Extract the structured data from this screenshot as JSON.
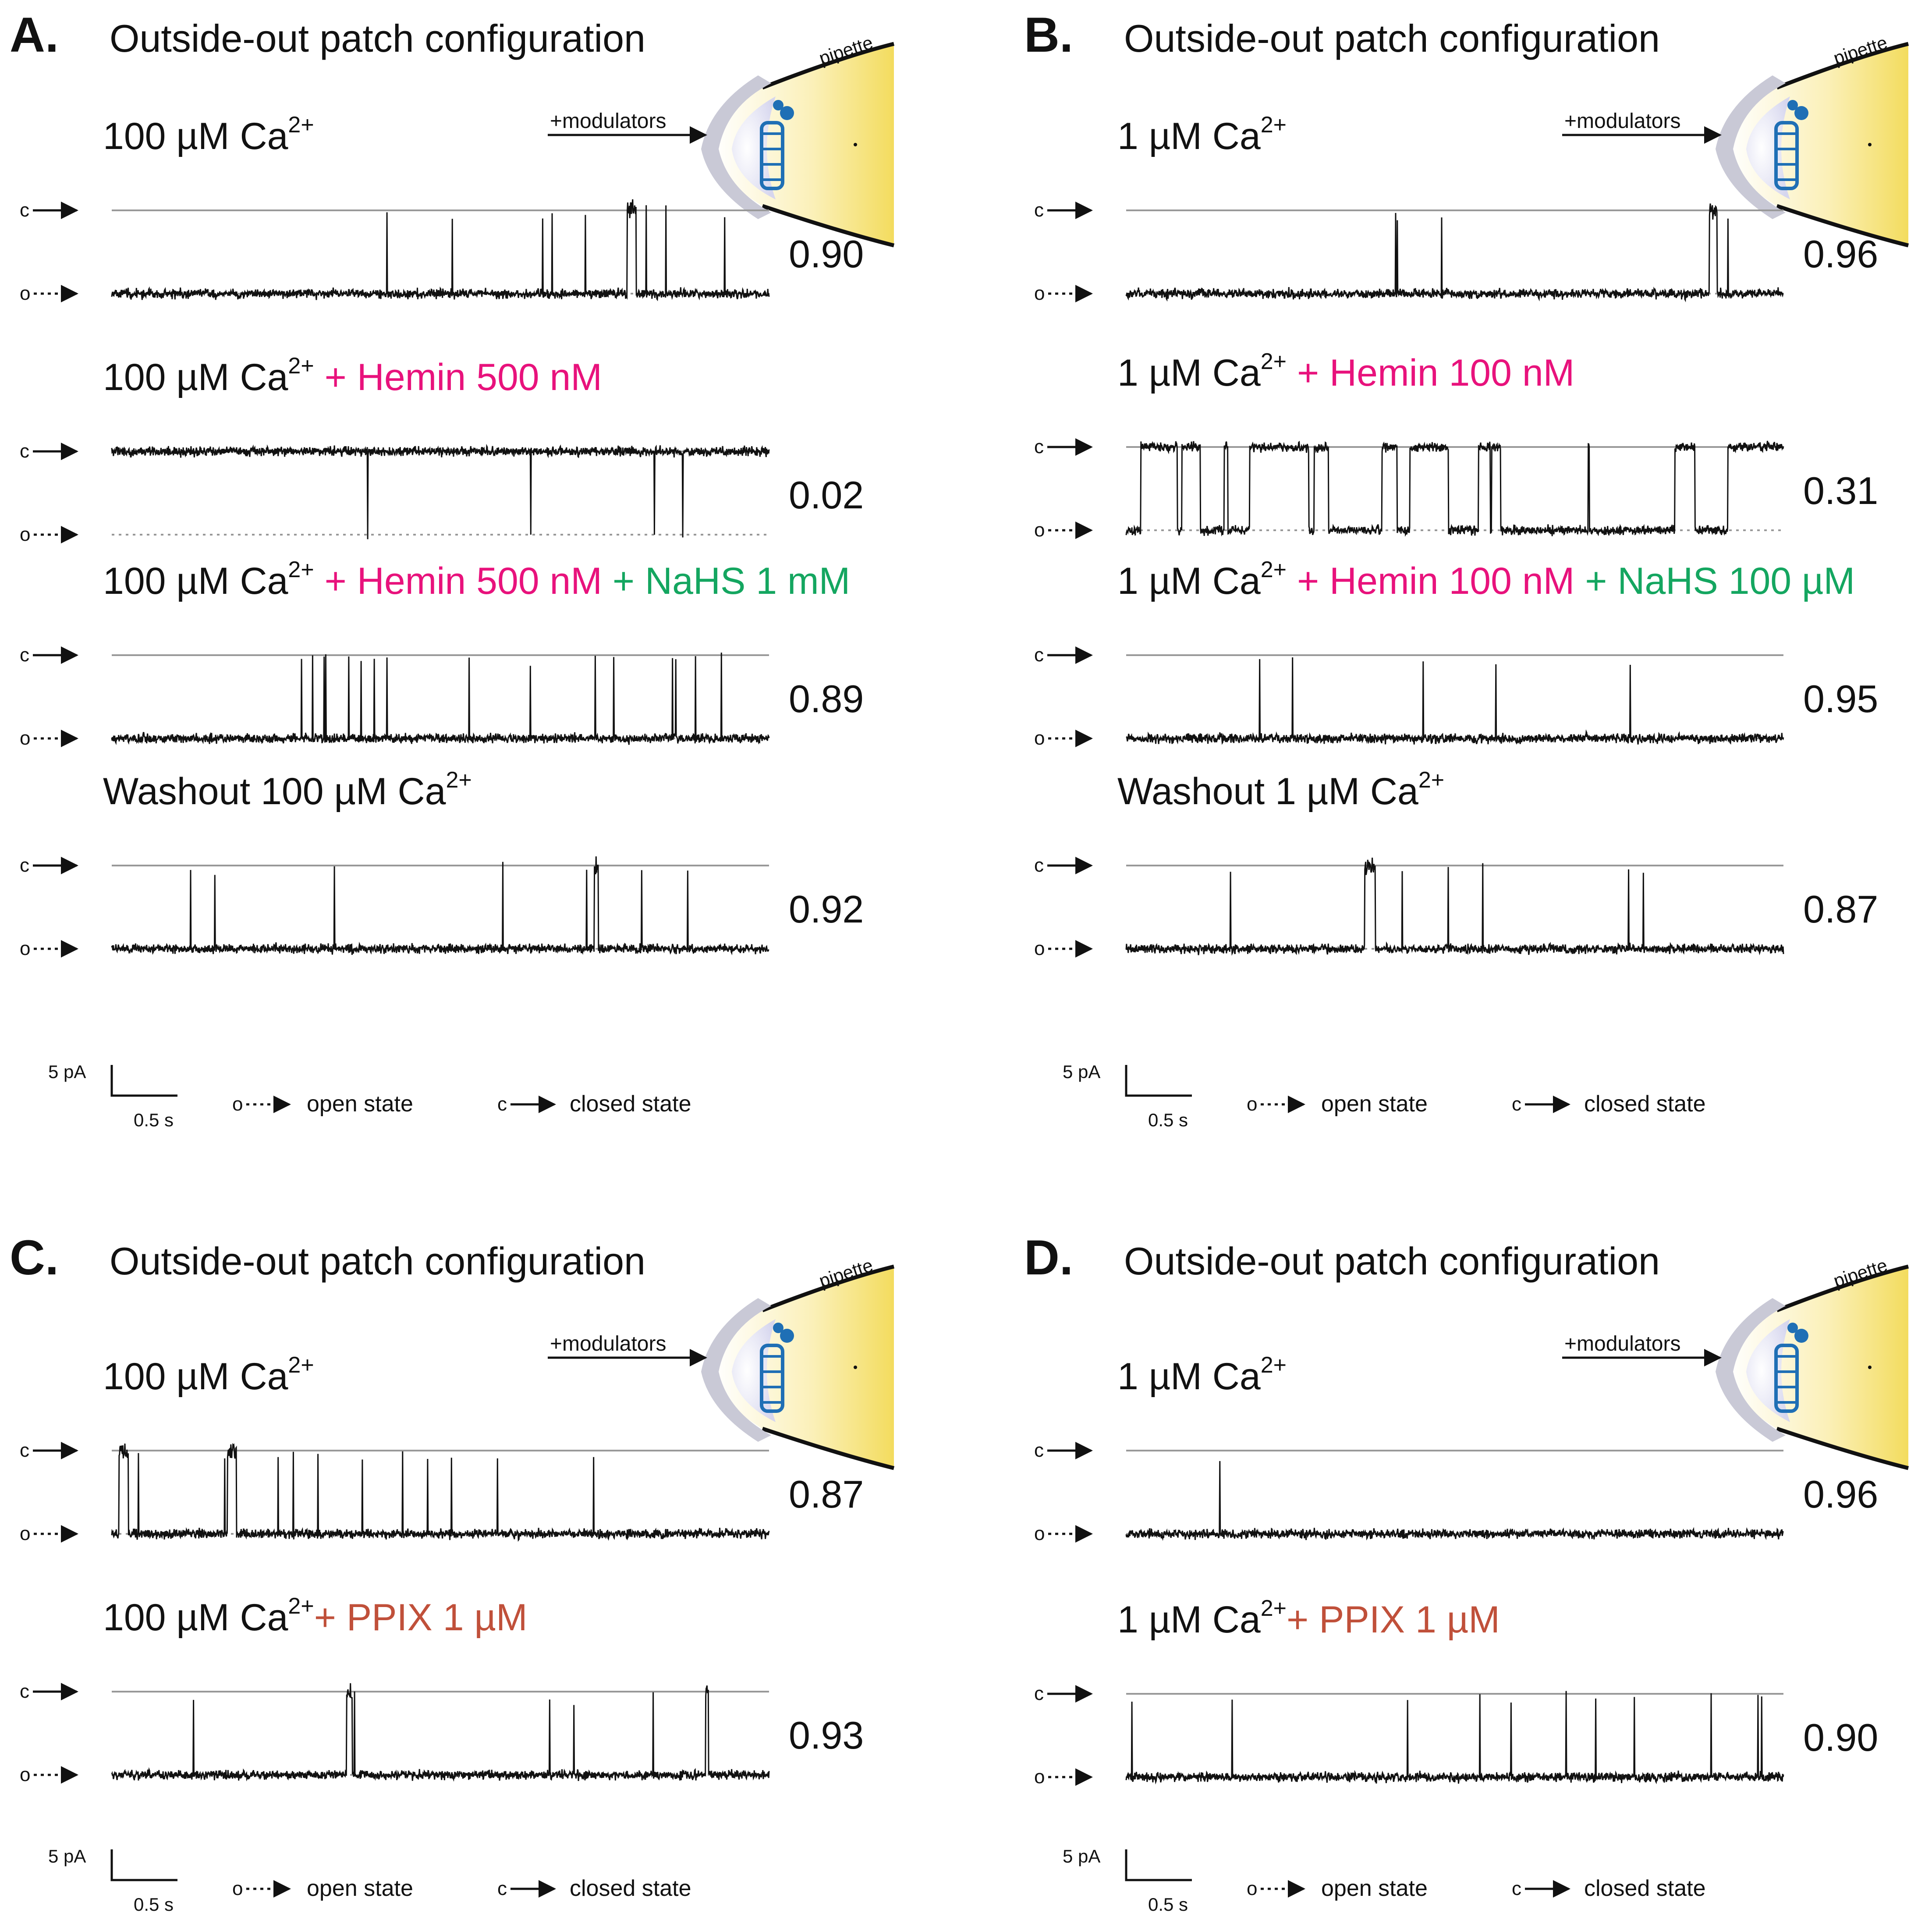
{
  "colors": {
    "hemin": "#e8127c",
    "nahs": "#14a660",
    "ppix": "#c0503a",
    "trace": "#111111",
    "line": "#999999",
    "channel": "#1f6fb5",
    "pipette_fill": "#f3df6a",
    "membrane": "#c9c9d6"
  },
  "common": {
    "config_title": "Outside-out patch configuration",
    "modulators_label": "+modulators",
    "pipette_label": "pipette",
    "closed_marker": "c",
    "open_marker": "o",
    "scale_y": "5 pA",
    "scale_x": "0.5 s",
    "legend_open": "open state",
    "legend_closed": "closed state"
  },
  "panels": [
    {
      "letter": "A.",
      "rows": [
        {
          "label": [
            {
              "t": "100 µM Ca",
              "c": "k"
            },
            {
              "t": "2+",
              "c": "k",
              "sup": true
            }
          ],
          "value": "0.90"
        },
        {
          "label": [
            {
              "t": "100 µM Ca",
              "c": "k"
            },
            {
              "t": "2+",
              "c": "k",
              "sup": true
            },
            {
              "t": " + Hemin 500 nM",
              "c": "hemin"
            }
          ],
          "value": "0.02"
        },
        {
          "label": [
            {
              "t": "100 µM Ca",
              "c": "k"
            },
            {
              "t": "2+",
              "c": "k",
              "sup": true
            },
            {
              "t": " + Hemin 500 nM",
              "c": "hemin"
            },
            {
              "t": " + NaHS 1 mM",
              "c": "nahs"
            }
          ],
          "value": "0.89"
        },
        {
          "label": [
            {
              "t": "Washout 100 µM Ca",
              "c": "k"
            },
            {
              "t": "2+",
              "c": "k",
              "sup": true
            }
          ],
          "value": "0.92"
        }
      ]
    },
    {
      "letter": "B.",
      "rows": [
        {
          "label": [
            {
              "t": "1 µM Ca",
              "c": "k"
            },
            {
              "t": "2+",
              "c": "k",
              "sup": true
            }
          ],
          "value": "0.96"
        },
        {
          "label": [
            {
              "t": "1 µM Ca",
              "c": "k"
            },
            {
              "t": "2+",
              "c": "k",
              "sup": true
            },
            {
              "t": " + Hemin 100 nM",
              "c": "hemin"
            }
          ],
          "value": "0.31"
        },
        {
          "label": [
            {
              "t": "1 µM Ca",
              "c": "k"
            },
            {
              "t": "2+",
              "c": "k",
              "sup": true
            },
            {
              "t": " + Hemin 100 nM",
              "c": "hemin"
            },
            {
              "t": " + NaHS 100 µM",
              "c": "nahs"
            }
          ],
          "value": "0.95"
        },
        {
          "label": [
            {
              "t": "Washout 1 µM Ca",
              "c": "k"
            },
            {
              "t": "2+",
              "c": "k",
              "sup": true
            }
          ],
          "value": "0.87"
        }
      ]
    },
    {
      "letter": "C.",
      "rows": [
        {
          "label": [
            {
              "t": "100 µM Ca",
              "c": "k"
            },
            {
              "t": "2+",
              "c": "k",
              "sup": true
            }
          ],
          "value": "0.87"
        },
        {
          "label": [
            {
              "t": "100 µM Ca",
              "c": "k"
            },
            {
              "t": "2+",
              "c": "k",
              "sup": true
            },
            {
              "t": "+ PPIX 1 µM",
              "c": "ppix"
            }
          ],
          "value": "0.93"
        }
      ]
    },
    {
      "letter": "D.",
      "rows": [
        {
          "label": [
            {
              "t": "1 µM Ca",
              "c": "k"
            },
            {
              "t": "2+",
              "c": "k",
              "sup": true
            }
          ],
          "value": "0.96"
        },
        {
          "label": [
            {
              "t": "1 µM Ca",
              "c": "k"
            },
            {
              "t": "2+",
              "c": "k",
              "sup": true
            },
            {
              "t": "+ PPIX 1 µM",
              "c": "ppix"
            }
          ],
          "value": "0.90"
        }
      ]
    }
  ]
}
